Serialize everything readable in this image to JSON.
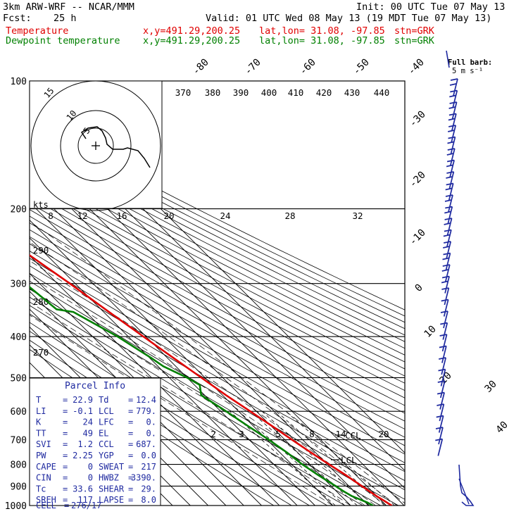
{
  "header": {
    "model": "3km ARW-WRF -- NCAR/MMM",
    "init": "Init: 00 UTC Tue 07 May 13",
    "fcst_label": "Fcst:",
    "fcst_value": "25 h",
    "valid": "Valid: 01 UTC Wed 08 May 13 (19 MDT Tue 07 May 13)",
    "series_rows": [
      {
        "name": "Temperature",
        "xy": "x,y=491.29,200.25",
        "latlon": "lat,lon= 31.08, -97.85",
        "stn": "stn=GRK",
        "color": "#e00000"
      },
      {
        "name": "Dewpoint temperature",
        "xy": "x,y=491.29,200.25",
        "latlon": "lat,lon= 31.08, -97.85",
        "stn": "stn=GRK",
        "color": "#008000"
      }
    ]
  },
  "chart_data": {
    "type": "line",
    "subtype": "skew-T log-P sounding",
    "y_axis": {
      "scale": "log",
      "unit": "hPa",
      "ticks": [
        100,
        200,
        300,
        400,
        500,
        600,
        700,
        800,
        900,
        1000
      ]
    },
    "isotherm_labels": [
      "-80",
      "-70",
      "-60",
      "-50",
      "-40",
      "-30",
      "-20",
      "-10",
      "0",
      "10",
      "20",
      "30",
      "40"
    ],
    "theta_labels_top": [
      "370",
      "380",
      "390",
      "400",
      "410",
      "420",
      "430",
      "440"
    ],
    "theta_labels_left": [
      "290",
      "280",
      "270"
    ],
    "mixing_ratio_labels": [
      "2",
      "3",
      "5",
      "8",
      "14",
      "20"
    ],
    "lcl_labels": [
      "CCL",
      "LCL"
    ],
    "series": [
      {
        "name": "Temperature",
        "color": "#e00000",
        "points": [
          [
            1000,
            23
          ],
          [
            975,
            21.5
          ],
          [
            950,
            19.8
          ],
          [
            925,
            18.5
          ],
          [
            900,
            17.2
          ],
          [
            850,
            14.5
          ],
          [
            800,
            11
          ],
          [
            750,
            7.5
          ],
          [
            700,
            4
          ],
          [
            650,
            0.5
          ],
          [
            600,
            -3.5
          ],
          [
            550,
            -8
          ],
          [
            500,
            -12
          ],
          [
            450,
            -16.5
          ],
          [
            400,
            -21.5
          ],
          [
            350,
            -27
          ],
          [
            300,
            -33
          ],
          [
            250,
            -41
          ],
          [
            220,
            -47
          ],
          [
            200,
            -52
          ],
          [
            180,
            -55
          ],
          [
            170,
            -55.5
          ],
          [
            150,
            -58
          ],
          [
            130,
            -61
          ],
          [
            115,
            -65
          ],
          [
            100,
            -68
          ]
        ]
      },
      {
        "name": "Dewpoint temperature",
        "color": "#008000",
        "points": [
          [
            1000,
            12.4
          ],
          [
            985,
            11.2
          ],
          [
            970,
            9
          ],
          [
            950,
            6
          ],
          [
            925,
            4
          ],
          [
            900,
            2.5
          ],
          [
            850,
            -1
          ],
          [
            800,
            -4
          ],
          [
            750,
            -6
          ],
          [
            700,
            -9
          ],
          [
            650,
            -13
          ],
          [
            600,
            -17
          ],
          [
            550,
            -22
          ],
          [
            520,
            -17
          ],
          [
            500,
            -20
          ],
          [
            470,
            -27
          ],
          [
            450,
            -29
          ],
          [
            400,
            -36
          ],
          [
            350,
            -47
          ],
          [
            345,
            -55
          ],
          [
            300,
            -58
          ],
          [
            250,
            -62
          ],
          [
            200,
            -66
          ],
          [
            150,
            -73
          ],
          [
            120,
            -79
          ],
          [
            100,
            -83
          ]
        ]
      }
    ]
  },
  "hodograph": {
    "kts_label": "kts",
    "ring_labels": [
      "5",
      "10",
      "15"
    ],
    "temp_scale_labels": [
      "8",
      "12",
      "16",
      "20",
      "24",
      "28",
      "32"
    ]
  },
  "wind_legend": {
    "title": "Full barb:",
    "value": "5 m s⁻¹"
  },
  "parcel_info": {
    "title": "Parcel Info",
    "rows": [
      {
        "l1": "T",
        "v1": "22.9",
        "l2": "Td",
        "v2": "12.4"
      },
      {
        "l1": "LI",
        "v1": "-0.1",
        "l2": "LCL",
        "v2": "779."
      },
      {
        "l1": "K",
        "v1": "24",
        "l2": "LFC",
        "v2": "0."
      },
      {
        "l1": "TT",
        "v1": "49",
        "l2": "EL",
        "v2": "0."
      },
      {
        "l1": "SVI",
        "v1": "1.2",
        "l2": "CCL",
        "v2": "687."
      },
      {
        "l1": "PW",
        "v1": "2.25",
        "l2": "YGP",
        "v2": "0.0"
      },
      {
        "l1": "CAPE",
        "v1": "0",
        "l2": "SWEAT",
        "v2": "217"
      },
      {
        "l1": "CIN",
        "v1": "0",
        "l2": "HWBZ",
        "v2": "3390."
      },
      {
        "l1": "Tc",
        "v1": "33.6",
        "l2": "SHEAR",
        "v2": "29."
      },
      {
        "l1": "SREH",
        "v1": "117",
        "l2": "LAPSE",
        "v2": "8.0"
      }
    ],
    "cell_label": "CELL",
    "cell_value": "276/17"
  }
}
